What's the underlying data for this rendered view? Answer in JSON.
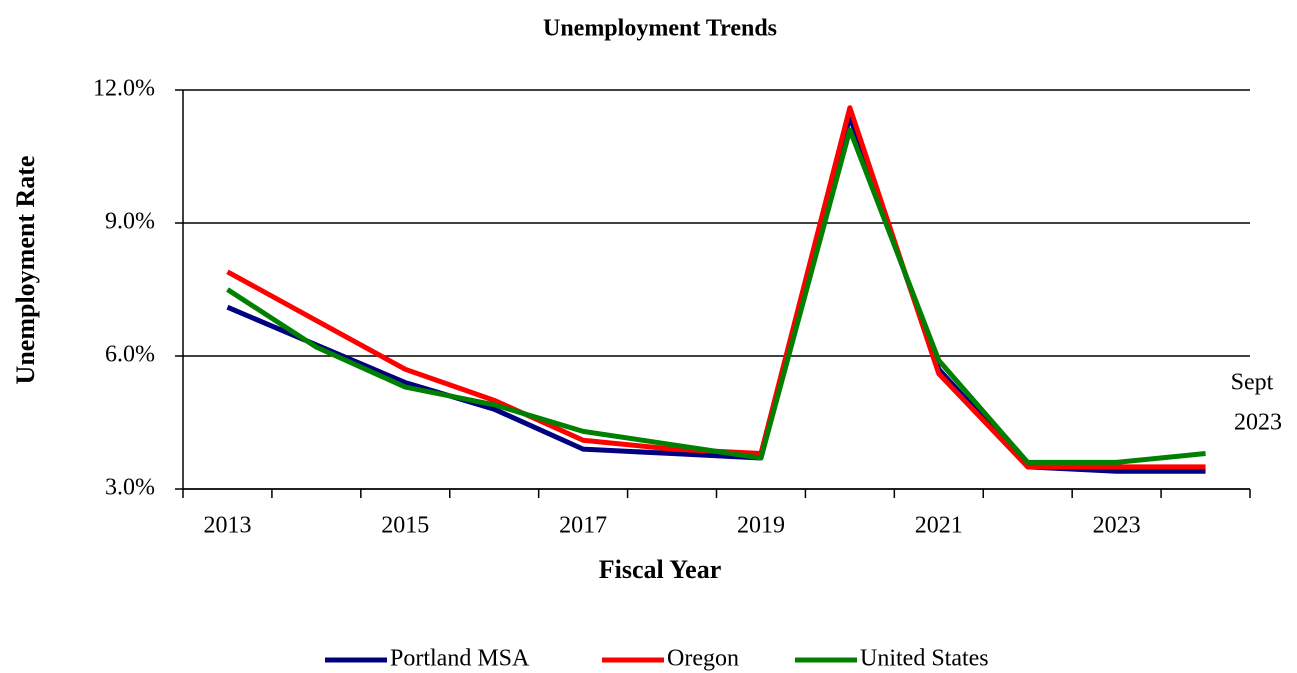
{
  "chart_data": {
    "type": "line",
    "title": "Unemployment Trends",
    "x_label": "Fiscal Year",
    "y_label": "Unemployment Rate",
    "categories": [
      "2013",
      null,
      "2015",
      null,
      "2017",
      null,
      "2019",
      null,
      "2021",
      null,
      "2023",
      null
    ],
    "annotation": [
      "Sept",
      "2023"
    ],
    "series": [
      {
        "name": "Portland MSA",
        "color": "#000080",
        "values": [
          7.1,
          6.25,
          5.4,
          4.8,
          3.9,
          3.8,
          3.7,
          11.4,
          5.7,
          3.5,
          3.4,
          3.4
        ]
      },
      {
        "name": "Oregon",
        "color": "#ff0000",
        "values": [
          7.9,
          6.8,
          5.7,
          5.0,
          4.1,
          3.9,
          3.8,
          11.6,
          5.6,
          3.5,
          3.5,
          3.5
        ]
      },
      {
        "name": "United States",
        "color": "#008000",
        "values": [
          7.5,
          6.2,
          5.3,
          4.9,
          4.3,
          4.0,
          3.7,
          11.1,
          5.9,
          3.6,
          3.6,
          3.8
        ]
      }
    ],
    "ylim": [
      3,
      12
    ],
    "yticks": [
      {
        "value": 3,
        "label": "3.0%"
      },
      {
        "value": 6,
        "label": "6.0%"
      },
      {
        "value": 9,
        "label": "9.0%"
      },
      {
        "value": 12,
        "label": "12.0%"
      }
    ],
    "grid": true,
    "legend": "bottom"
  }
}
